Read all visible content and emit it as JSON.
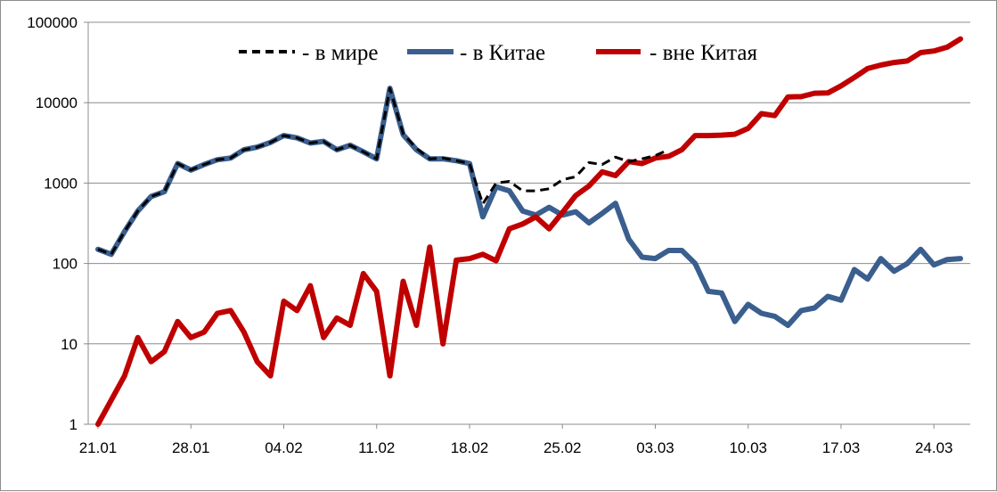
{
  "chart_data": {
    "type": "line",
    "y_scale": "log",
    "ylim": [
      1,
      100000
    ],
    "grid": "horizontal",
    "legend_position": "top",
    "yticks": [
      1,
      10,
      100,
      1000,
      10000,
      100000
    ],
    "ytick_labels": [
      "1",
      "10",
      "100",
      "1000",
      "10000",
      "100000"
    ],
    "xtick_labels": [
      "21.01",
      "28.01",
      "04.02",
      "11.02",
      "18.02",
      "25.02",
      "03.03",
      "10.03",
      "17.03",
      "24.03"
    ],
    "x_start": "21.01",
    "x_end": "26.03",
    "series": [
      {
        "name": "- в мире",
        "color": "#000000",
        "style": "dashed",
        "start": "21.01",
        "values": [
          150,
          130,
          250,
          450,
          680,
          780,
          1750,
          1450,
          1700,
          1950,
          2050,
          2600,
          2800,
          3200,
          3900,
          3650,
          3150,
          3300,
          2600,
          2950,
          2450,
          2000,
          15100,
          4100,
          2700,
          2000,
          2050,
          1900,
          1750,
          550,
          1000,
          1050,
          800,
          800,
          850,
          1100,
          1200,
          1800,
          1700,
          2100,
          1850,
          2000,
          2200,
          2600
        ]
      },
      {
        "name": "-  в Китае",
        "color": "#3a5f8f",
        "style": "solid",
        "start": "21.01",
        "values": [
          150,
          130,
          250,
          450,
          680,
          780,
          1750,
          1450,
          1700,
          1950,
          2050,
          2600,
          2800,
          3200,
          3900,
          3650,
          3150,
          3300,
          2600,
          2950,
          2450,
          2000,
          15100,
          4000,
          2600,
          2000,
          2000,
          1900,
          1750,
          380,
          900,
          800,
          450,
          400,
          500,
          400,
          440,
          320,
          420,
          560,
          200,
          120,
          115,
          145,
          145,
          100,
          45,
          43,
          19,
          31,
          24,
          22,
          17,
          26,
          28,
          39,
          35,
          84,
          64,
          115,
          80,
          100,
          150,
          96,
          112,
          115
        ]
      },
      {
        "name": "- вне Китая",
        "color": "#c00000",
        "style": "solid",
        "start": "21.01",
        "values": [
          1,
          2,
          4,
          12,
          6,
          8,
          19,
          12,
          14,
          24,
          26,
          14,
          6,
          4,
          34,
          26,
          53,
          12,
          21,
          17,
          75,
          45,
          4,
          60,
          17,
          160,
          10,
          110,
          115,
          130,
          108,
          270,
          310,
          380,
          270,
          430,
          700,
          920,
          1380,
          1240,
          1850,
          1750,
          2050,
          2150,
          2600,
          3900,
          3900,
          3950,
          4050,
          4800,
          7300,
          6900,
          11800,
          11900,
          13100,
          13200,
          16200,
          20600,
          26600,
          29400,
          31600,
          33000,
          42000,
          44000,
          49000,
          62000
        ]
      }
    ]
  }
}
